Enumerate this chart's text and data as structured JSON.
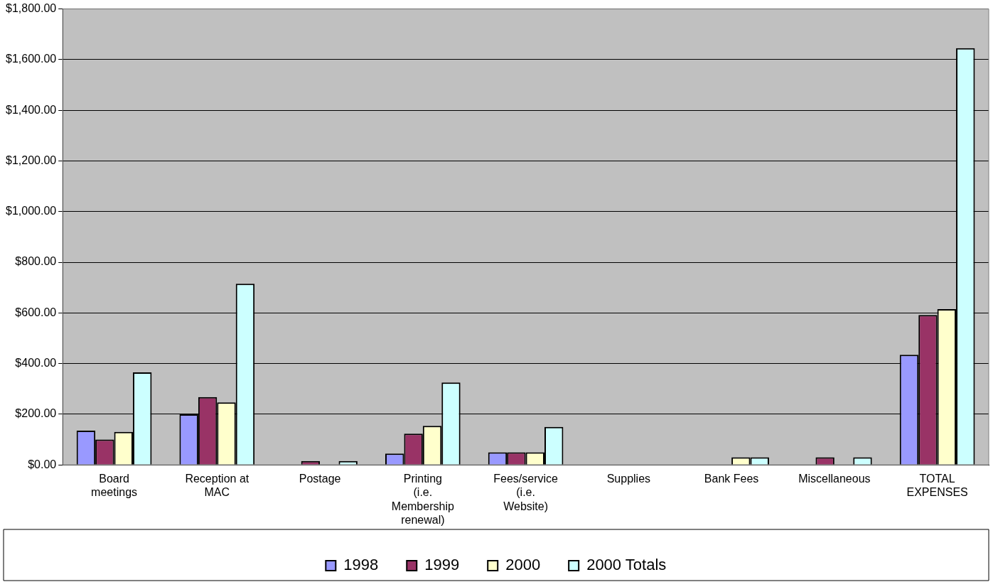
{
  "chart_data": {
    "type": "bar",
    "categories": [
      "Board meetings",
      "Reception at MAC",
      "Postage",
      "Printing (i.e. Membership renewal)",
      "Fees/service (i.e. Website)",
      "Supplies",
      "Bank Fees",
      "Miscellaneous",
      "TOTAL EXPENSES"
    ],
    "series": [
      {
        "name": "1998",
        "color": "#9999ff",
        "values": [
          135,
          200,
          0,
          45,
          50,
          0,
          0,
          0,
          435
        ]
      },
      {
        "name": "1999",
        "color": "#993366",
        "values": [
          100,
          268,
          15,
          123,
          50,
          0,
          0,
          30,
          592
        ]
      },
      {
        "name": "2000",
        "color": "#ffffcc",
        "values": [
          130,
          247,
          0,
          154,
          50,
          0,
          30,
          0,
          615
        ]
      },
      {
        "name": "2000 Totals",
        "color": "#ccffff",
        "values": [
          365,
          715,
          15,
          325,
          150,
          0,
          30,
          30,
          1645
        ]
      }
    ],
    "ylim": [
      0,
      1800
    ],
    "yticks": [
      {
        "value": 0,
        "label": "$0.00"
      },
      {
        "value": 200,
        "label": "$200.00"
      },
      {
        "value": 400,
        "label": "$400.00"
      },
      {
        "value": 600,
        "label": "$600.00"
      },
      {
        "value": 800,
        "label": "$800.00"
      },
      {
        "value": 1000,
        "label": "$1,000.00"
      },
      {
        "value": 1200,
        "label": "$1,200.00"
      },
      {
        "value": 1400,
        "label": "$1,400.00"
      },
      {
        "value": 1600,
        "label": "$1,600.00"
      },
      {
        "value": 1800,
        "label": "$1,800.00"
      }
    ],
    "grid": "y",
    "legend": "bottom"
  }
}
